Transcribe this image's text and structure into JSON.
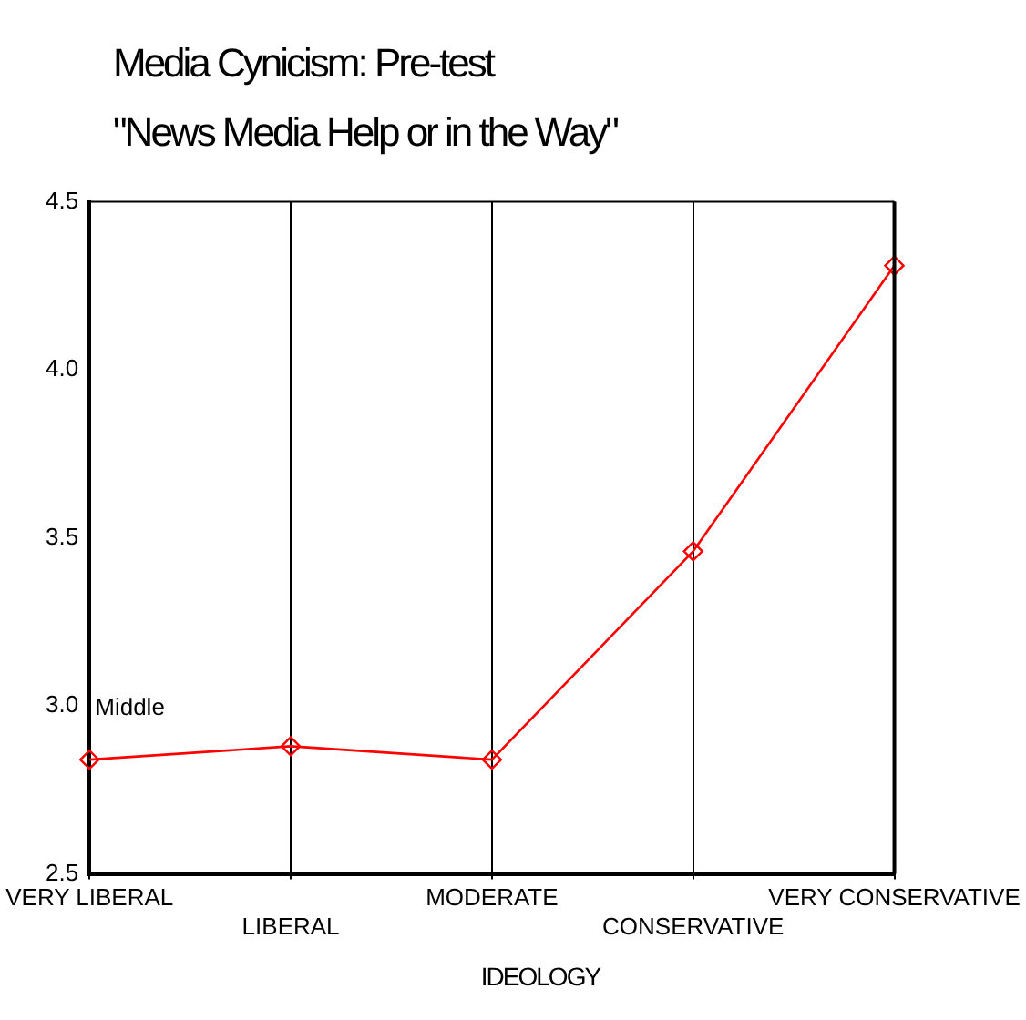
{
  "chart_data": {
    "type": "line",
    "title": "Media Cynicism: Pre-test",
    "subtitle": "\"News Media Help or in the Way\"",
    "xlabel": "IDEOLOGY",
    "categories": [
      "VERY LIBERAL",
      "LIBERAL",
      "MODERATE",
      "CONSERVATIVE",
      "VERY CONSERVATIVE"
    ],
    "series": [
      {
        "color": "#ff0000",
        "values": [
          2.84,
          2.88,
          2.84,
          3.46,
          4.31
        ]
      }
    ],
    "ylim": [
      2.5,
      4.5
    ],
    "yticks": [
      2.5,
      {
        "value": 3,
        "label": "3.0"
      },
      3.5,
      {
        "value": 4,
        "label": "4.0"
      },
      4.5
    ],
    "grid": "x",
    "marker": "diamond",
    "line_style": "solid",
    "legend": false,
    "annotations": [
      "Middle"
    ]
  }
}
